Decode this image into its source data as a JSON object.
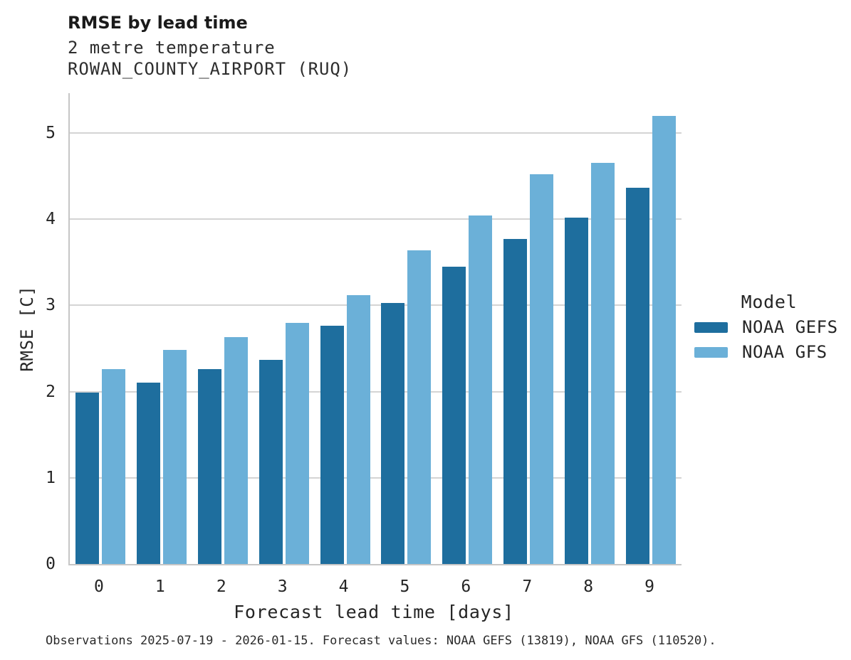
{
  "header": {
    "title": "RMSE by lead time",
    "subtitle_line1": "2 metre temperature",
    "subtitle_line2": "ROWAN_COUNTY_AIRPORT (RUQ)"
  },
  "chart_data": {
    "type": "bar",
    "title": "RMSE by lead time",
    "subtitle": [
      "2 metre temperature",
      "ROWAN_COUNTY_AIRPORT (RUQ)"
    ],
    "xlabel": "Forecast lead time [days]",
    "ylabel": "RMSE [C]",
    "categories": [
      "0",
      "1",
      "2",
      "3",
      "4",
      "5",
      "6",
      "7",
      "8",
      "9"
    ],
    "series": [
      {
        "name": "NOAA GEFS",
        "color": "#1e6e9e",
        "values": [
          1.99,
          2.1,
          2.26,
          2.37,
          2.76,
          3.03,
          3.45,
          3.77,
          4.02,
          4.36
        ]
      },
      {
        "name": "NOAA GFS",
        "color": "#6bb0d8",
        "values": [
          2.26,
          2.48,
          2.63,
          2.8,
          3.12,
          3.64,
          4.04,
          4.52,
          4.65,
          5.2
        ]
      }
    ],
    "ylim": [
      0,
      5.46
    ],
    "yticks": [
      0,
      1,
      2,
      3,
      4,
      5
    ],
    "grid": true,
    "legend_title": "Model",
    "legend_position": "right"
  },
  "legend": {
    "title": "Model",
    "items": [
      {
        "label": "NOAA GEFS",
        "color": "#1e6e9e"
      },
      {
        "label": "NOAA GFS",
        "color": "#6bb0d8"
      }
    ]
  },
  "footer": {
    "caption": "Observations 2025-07-19 - 2026-01-15. Forecast values: NOAA GEFS (13819), NOAA GFS (110520)."
  },
  "colors": {
    "gefs_bar": "#1e6e9e",
    "gfs_bar": "#6bb0d8",
    "gridline": "#d4d4d4",
    "axis_line": "#c6c6c6",
    "text": "#1f1f1f"
  }
}
